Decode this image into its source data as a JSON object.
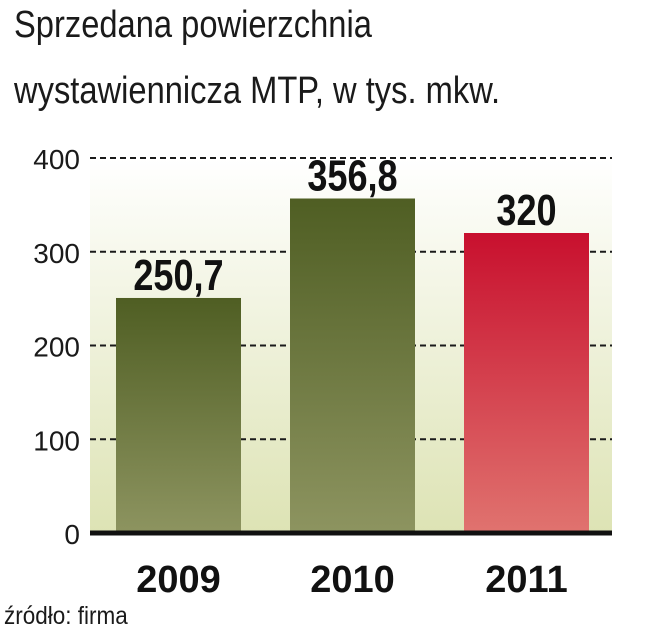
{
  "header": {
    "title_line1": "Sprzedana powierzchnia",
    "title_line2": "wystawiennicza MTP, w tys. mkw."
  },
  "footer": {
    "source": "źródło: firma"
  },
  "chart_data": {
    "type": "bar",
    "title": "Sprzedana powierzchnia wystawiennicza MTP, w tys. mkw.",
    "categories": [
      "2009",
      "2010",
      "2011"
    ],
    "values": [
      250.7,
      356.8,
      320
    ],
    "value_labels": [
      "250,7",
      "356,8",
      "320"
    ],
    "xlabel": "",
    "ylabel": "",
    "ylim": [
      0,
      400
    ],
    "yticks": [
      0,
      100,
      200,
      300,
      400
    ],
    "ytick_labels": [
      "0",
      "100",
      "200",
      "300",
      "400"
    ],
    "grid": true,
    "grid_style": "dashed",
    "legend": "none",
    "colors": {
      "bar_2009": [
        "#4f5e23",
        "#8d9460"
      ],
      "bar_2010": [
        "#4f5e23",
        "#8d9460"
      ],
      "bar_2011": [
        "#c8102e",
        "#e0736f"
      ],
      "plot_background": [
        "#ffffff",
        "#dde3b4"
      ],
      "gridline": "#1a1a1a",
      "baseline": "#111111"
    }
  }
}
